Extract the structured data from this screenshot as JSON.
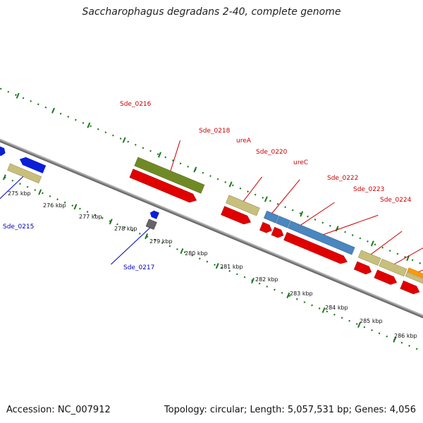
{
  "title": "Saccharophagus degradans 2-40, complete genome",
  "footer": {
    "accession": "Accession: NC_007912",
    "summary": "Topology: circular; Length: 5,057,531 bp; Genes: 4,056"
  },
  "colors": {
    "backbone": "#8a8a8a",
    "tick": "#1e7a1e",
    "forward_label": "#cc0000",
    "reverse_label": "#0000bb",
    "cds": "#e00000",
    "trna_blue": "#0a1fd6",
    "olive": "#6f8a24",
    "khaki": "#c9bf7c",
    "steel": "#4a86bf",
    "orange": "#ff9900",
    "grey": "#666666"
  },
  "ruler": [
    "275 kbp",
    "276 kbp",
    "277 kbp",
    "278 kbp",
    "279 kbp",
    "280 kbp",
    "281 kbp",
    "282 kbp",
    "283 kbp",
    "284 kbp",
    "285 kbp",
    "286 kbp"
  ],
  "forward_labels": [
    "Sde_0216",
    "Sde_0218",
    "ureA",
    "Sde_0220",
    "ureC",
    "Sde_0222",
    "Sde_0223",
    "Sde_0224"
  ],
  "reverse_labels": [
    "Sde_0215",
    "Sde_0217"
  ]
}
